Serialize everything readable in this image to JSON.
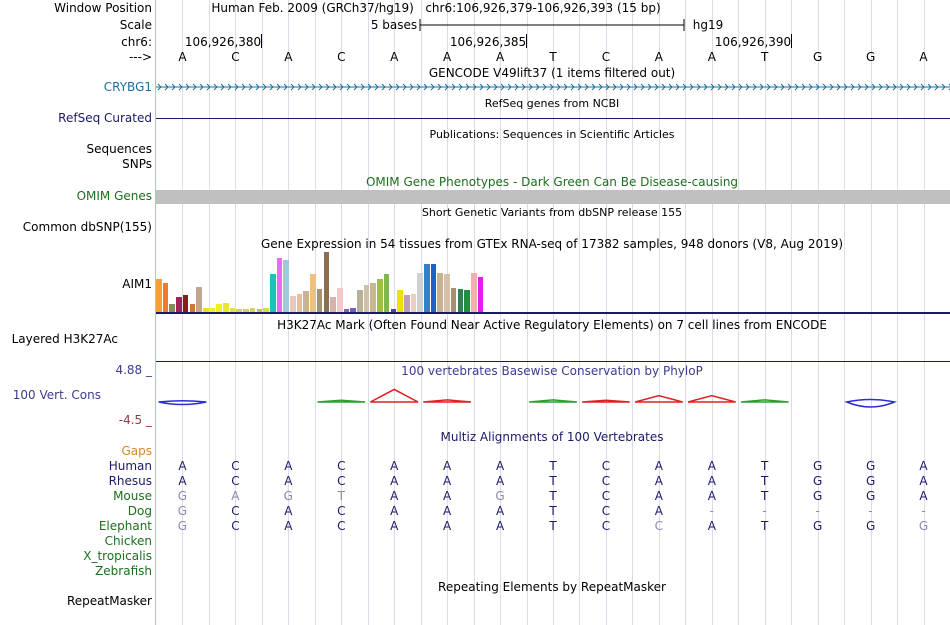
{
  "header": {
    "window_position_label": "Window Position",
    "scale_label": "Scale",
    "chrom_label": "chr6:",
    "strand_label": "--->",
    "assembly": "Human Feb. 2009 (GRCh37/hg19)",
    "position": "chr6:106,926,379-106,926,393 (15 bp)",
    "scale_text": "5 bases",
    "db": "hg19",
    "coordinates": [
      "106,926,380",
      "106,926,385",
      "106,926,390"
    ]
  },
  "sequence": [
    "A",
    "C",
    "A",
    "C",
    "A",
    "A",
    "A",
    "T",
    "C",
    "A",
    "A",
    "T",
    "G",
    "G",
    "A"
  ],
  "tracks": {
    "gencode": {
      "title": "GENCODE V49lift37 (1 items filtered out)",
      "gene": "CRYBG1",
      "color": "#1d6e9e"
    },
    "refseq": {
      "title": "RefSeq genes from NCBI",
      "label": "RefSeq Curated",
      "color": "#1a1a6a"
    },
    "publications": {
      "title": "Publications: Sequences in Scientific Articles",
      "label1": "Sequences",
      "label2": "SNPs"
    },
    "omim": {
      "title": "OMIM Gene Phenotypes - Dark Green Can Be Disease-causing",
      "label": "OMIM Genes",
      "color": "#1e6e1e",
      "bar_color": "#c0c0c0"
    },
    "dbsnp": {
      "title": "Short Genetic Variants from dbSNP release 155",
      "label": "Common dbSNP(155)"
    },
    "gtex": {
      "title": "Gene Expression in 54 tissues from GTEx RNA-seq of 17382 samples, 948 donors (V8, Aug 2019)",
      "gene": "AIM1"
    },
    "h3k27ac": {
      "title": "H3K27Ac Mark (Often Found Near Active Regulatory Elements) on 7 cell lines from ENCODE",
      "label": "Layered H3K27Ac"
    },
    "phylop": {
      "title": "100 vertebrates Basewise Conservation by PhyloP",
      "label": "100 Vert. Cons",
      "max": "4.88 _",
      "min": "-4.5 _",
      "color": "#3c3c8c",
      "min_color": "#8c3c3c"
    },
    "multiz": {
      "title": "Multiz Alignments of 100 Vertebrates",
      "gaps_label": "Gaps",
      "gaps_color": "#d08a2a",
      "color": "#1a1a6a"
    },
    "repeatmasker": {
      "title": "Repeating Elements by RepeatMasker",
      "label": "RepeatMasker"
    }
  },
  "alignments": [
    {
      "species": "Human",
      "bases": [
        "A",
        "C",
        "A",
        "C",
        "A",
        "A",
        "A",
        "T",
        "C",
        "A",
        "A",
        "T",
        "G",
        "G",
        "A"
      ],
      "dim": []
    },
    {
      "species": "Rhesus",
      "bases": [
        "A",
        "C",
        "A",
        "C",
        "A",
        "A",
        "A",
        "T",
        "C",
        "A",
        "A",
        "T",
        "G",
        "G",
        "A"
      ],
      "dim": []
    },
    {
      "species": "Mouse",
      "bases": [
        "G",
        "A",
        "G",
        "T",
        "A",
        "A",
        "G",
        "T",
        "C",
        "A",
        "A",
        "T",
        "G",
        "G",
        "A"
      ],
      "dim": [
        0,
        1,
        2,
        3,
        6
      ]
    },
    {
      "species": "Dog",
      "bases": [
        "G",
        "C",
        "A",
        "C",
        "A",
        "A",
        "A",
        "T",
        "C",
        "A",
        "-",
        "-",
        "-",
        "-",
        "-"
      ],
      "dim": [
        0,
        10,
        11,
        12,
        13,
        14
      ]
    },
    {
      "species": "Elephant",
      "bases": [
        "G",
        "C",
        "A",
        "C",
        "A",
        "A",
        "A",
        "T",
        "C",
        "C",
        "A",
        "T",
        "G",
        "G",
        "G"
      ],
      "dim": [
        0,
        9,
        14
      ]
    },
    {
      "species": "Chicken",
      "bases": [],
      "dim": []
    },
    {
      "species": "X_tropicalis",
      "bases": [],
      "dim": []
    },
    {
      "species": "Zebrafish",
      "bases": [],
      "dim": []
    }
  ],
  "gtex_bars": [
    {
      "v": 0.55,
      "c": "#f7a03a"
    },
    {
      "v": 0.48,
      "c": "#f07a2c"
    },
    {
      "v": 0.13,
      "c": "#8a8a5a"
    },
    {
      "v": 0.25,
      "c": "#a8205a"
    },
    {
      "v": 0.28,
      "c": "#8b1a1a"
    },
    {
      "v": 0.13,
      "c": "#c87a3c"
    },
    {
      "v": 0.42,
      "c": "#c0a890"
    },
    {
      "v": 0.06,
      "c": "#e8e020"
    },
    {
      "v": 0.06,
      "c": "#f0e840"
    },
    {
      "v": 0.13,
      "c": "#f0f020"
    },
    {
      "v": 0.15,
      "c": "#e8e830"
    },
    {
      "v": 0.06,
      "c": "#e8e040"
    },
    {
      "v": 0.05,
      "c": "#d8d060"
    },
    {
      "v": 0.05,
      "c": "#d8d050"
    },
    {
      "v": 0.06,
      "c": "#d8d060"
    },
    {
      "v": 0.05,
      "c": "#c8c050"
    },
    {
      "v": 0.06,
      "c": "#e0d840"
    },
    {
      "v": 0.63,
      "c": "#20c0c0"
    },
    {
      "v": 0.9,
      "c": "#e070f0"
    },
    {
      "v": 0.87,
      "c": "#a0c8d8"
    },
    {
      "v": 0.27,
      "c": "#e8c8b8"
    },
    {
      "v": 0.3,
      "c": "#e0c0a0"
    },
    {
      "v": 0.35,
      "c": "#d0b090"
    },
    {
      "v": 0.63,
      "c": "#f0c080"
    },
    {
      "v": 0.38,
      "c": "#a89070"
    },
    {
      "v": 1.0,
      "c": "#8a7050"
    },
    {
      "v": 0.25,
      "c": "#d8b0b0"
    },
    {
      "v": 0.4,
      "c": "#f0c8c8"
    },
    {
      "v": 0.05,
      "c": "#9060b0"
    },
    {
      "v": 0.06,
      "c": "#7060c0"
    },
    {
      "v": 0.37,
      "c": "#b8b098"
    },
    {
      "v": 0.45,
      "c": "#d0c0a8"
    },
    {
      "v": 0.48,
      "c": "#c8b890"
    },
    {
      "v": 0.55,
      "c": "#a0c040"
    },
    {
      "v": 0.63,
      "c": "#80b850"
    },
    {
      "v": 0.05,
      "c": "#5040a0"
    },
    {
      "v": 0.37,
      "c": "#f0e000"
    },
    {
      "v": 0.28,
      "c": "#c0a0b0"
    },
    {
      "v": 0.3,
      "c": "#e8d0c0"
    },
    {
      "v": 0.65,
      "c": "#d0d0d0"
    },
    {
      "v": 0.8,
      "c": "#3080d0"
    },
    {
      "v": 0.8,
      "c": "#2060c8"
    },
    {
      "v": 0.65,
      "c": "#c8b090"
    },
    {
      "v": 0.63,
      "c": "#d8c0a8"
    },
    {
      "v": 0.4,
      "c": "#a89070"
    },
    {
      "v": 0.38,
      "c": "#308050"
    },
    {
      "v": 0.37,
      "c": "#209040"
    },
    {
      "v": 0.65,
      "c": "#f0b0b0"
    },
    {
      "v": 0.58,
      "c": "#e020e8"
    }
  ],
  "phylop_glyphs": [
    {
      "pos": 0.5,
      "sign": -1,
      "c": "#2b2bd8",
      "v": 0.28
    },
    {
      "pos": 3.5,
      "sign": 1,
      "c": "#2aa02a",
      "v": 0.1
    },
    {
      "pos": 4.5,
      "sign": 1,
      "c": "#e02020",
      "v": 0.7
    },
    {
      "pos": 5.5,
      "sign": 1,
      "c": "#e02020",
      "v": 0.12
    },
    {
      "pos": 7.5,
      "sign": 1,
      "c": "#2aa02a",
      "v": 0.12
    },
    {
      "pos": 8.5,
      "sign": 1,
      "c": "#e02020",
      "v": 0.1
    },
    {
      "pos": 9.5,
      "sign": 1,
      "c": "#e02020",
      "v": 0.35
    },
    {
      "pos": 10.5,
      "sign": 1,
      "c": "#e02020",
      "v": 0.35
    },
    {
      "pos": 11.5,
      "sign": 1,
      "c": "#2aa02a",
      "v": 0.12
    },
    {
      "pos": 13.5,
      "sign": -1,
      "c": "#2b2bd8",
      "v": 0.55
    }
  ]
}
